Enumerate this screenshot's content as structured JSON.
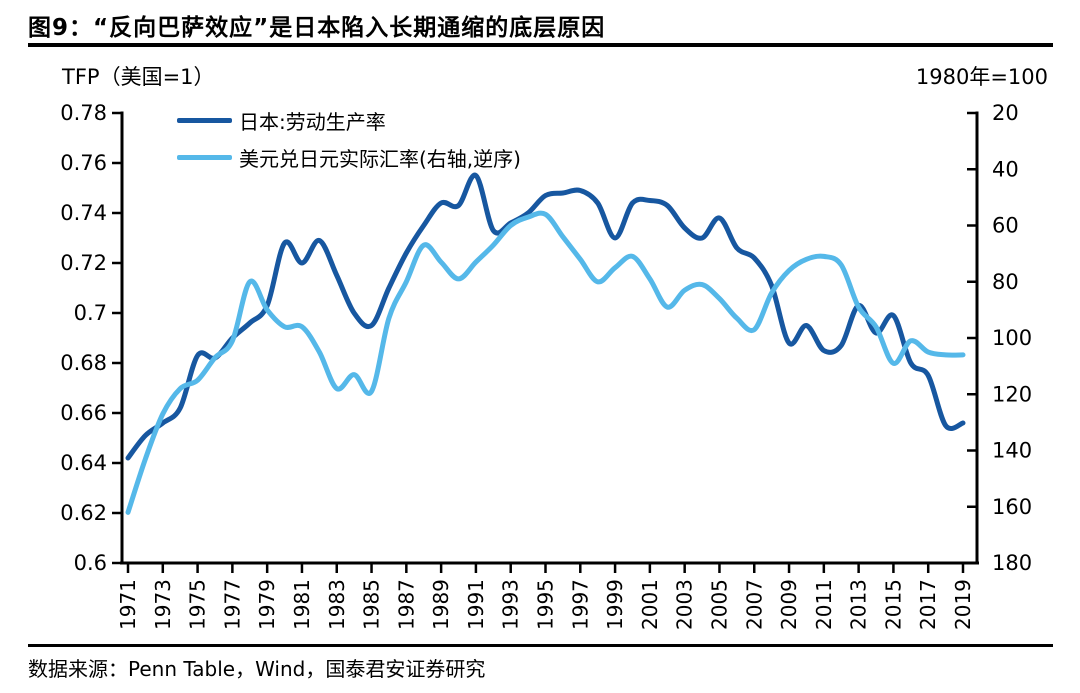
{
  "header": {
    "title": "图9：“反向巴萨效应”是日本陷入长期通缩的底层原因"
  },
  "footer": {
    "source": "数据来源：Penn Table，Wind，国泰君安证券研究"
  },
  "chart_data": {
    "type": "line",
    "left_axis_title": "TFP（美国=1）",
    "right_axis_title": "1980年=100",
    "grid": false,
    "legend_position": "top-left-inside",
    "x": [
      1971,
      1972,
      1973,
      1974,
      1975,
      1976,
      1977,
      1978,
      1979,
      1980,
      1981,
      1982,
      1983,
      1984,
      1985,
      1986,
      1987,
      1988,
      1989,
      1990,
      1991,
      1992,
      1993,
      1994,
      1995,
      1996,
      1997,
      1998,
      1999,
      2000,
      2001,
      2002,
      2003,
      2004,
      2005,
      2006,
      2007,
      2008,
      2009,
      2010,
      2011,
      2012,
      2013,
      2014,
      2015,
      2016,
      2017,
      2018,
      2019
    ],
    "x_tick_labels": [
      "1971",
      "1973",
      "1975",
      "1977",
      "1979",
      "1981",
      "1983",
      "1985",
      "1987",
      "1989",
      "1991",
      "1993",
      "1995",
      "1997",
      "1999",
      "2001",
      "2003",
      "2005",
      "2007",
      "2009",
      "2011",
      "2013",
      "2015",
      "2017",
      "2019"
    ],
    "left_axis": {
      "min": 0.6,
      "max": 0.78,
      "tick_labels": [
        "0.78",
        "0.76",
        "0.74",
        "0.72",
        "0.7",
        "0.68",
        "0.66",
        "0.64",
        "0.62",
        "0.6"
      ],
      "tick_values": [
        0.78,
        0.76,
        0.74,
        0.72,
        0.7,
        0.68,
        0.66,
        0.64,
        0.62,
        0.6
      ]
    },
    "right_axis": {
      "min": 20,
      "max": 180,
      "inverted": true,
      "tick_labels": [
        "20",
        "40",
        "60",
        "80",
        "100",
        "120",
        "140",
        "160",
        "180"
      ],
      "tick_values": [
        20,
        40,
        60,
        80,
        100,
        120,
        140,
        160,
        180
      ]
    },
    "series": [
      {
        "name": "日本:劳动生产率",
        "axis": "left",
        "color": "#1757A0",
        "values": [
          0.642,
          0.651,
          0.656,
          0.662,
          0.683,
          0.682,
          0.69,
          0.696,
          0.703,
          0.728,
          0.72,
          0.729,
          0.715,
          0.7,
          0.695,
          0.71,
          0.724,
          0.735,
          0.744,
          0.743,
          0.755,
          0.733,
          0.736,
          0.74,
          0.747,
          0.748,
          0.749,
          0.744,
          0.73,
          0.744,
          0.745,
          0.743,
          0.734,
          0.73,
          0.738,
          0.726,
          0.722,
          0.711,
          0.688,
          0.695,
          0.685,
          0.687,
          0.703,
          0.692,
          0.699,
          0.68,
          0.675,
          0.655,
          0.656
        ]
      },
      {
        "name": "美元兑日元实际汇率(右轴,逆序)",
        "axis": "right",
        "color": "#55B8E9",
        "values": [
          162,
          143,
          127,
          118,
          115,
          107,
          101,
          80,
          90,
          96,
          96,
          105,
          118,
          113,
          119,
          93,
          80,
          67,
          73,
          79,
          73,
          67,
          60,
          57,
          56,
          64,
          72,
          80,
          75,
          71,
          79,
          89,
          83,
          81,
          86,
          93,
          97,
          84,
          76,
          72,
          71,
          74,
          89,
          96,
          109,
          101,
          105,
          106,
          106
        ]
      }
    ],
    "axis_color": "#000000"
  }
}
